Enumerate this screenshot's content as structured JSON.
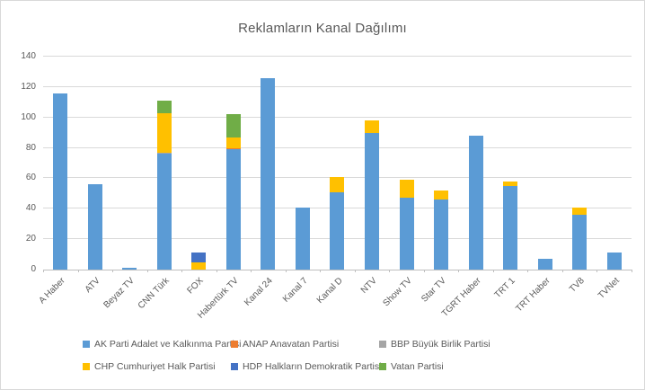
{
  "window": {
    "background": "#ffffff",
    "border_color": "#d9d9d9"
  },
  "chart_data": {
    "type": "bar",
    "stacked": true,
    "title": "Reklamların Kanal Dağılımı",
    "xlabel": "",
    "ylabel": "",
    "ylim": [
      0,
      140
    ],
    "yticks": [
      0,
      20,
      40,
      60,
      80,
      100,
      120,
      140
    ],
    "grid": true,
    "legend_position": "bottom",
    "categories": [
      "A Haber",
      "ATV",
      "Beyaz TV",
      "CNN Türk",
      "FOX",
      "Habertürk TV",
      "Kanal 24",
      "Kanal 7",
      "Kanal D",
      "NTV",
      "Show TV",
      "Star TV",
      "TGRT Haber",
      "TRT 1",
      "TRT Haber",
      "TV8",
      "TVNet"
    ],
    "series": [
      {
        "name": "AK Parti Adalet ve Kalkınma Partisi",
        "color": "#5B9BD5",
        "values": [
          116,
          56,
          1,
          76,
          0,
          79,
          126,
          41,
          51,
          90,
          47,
          46,
          88,
          55,
          7,
          36,
          11
        ]
      },
      {
        "name": "ANAP Anavatan Partisi",
        "color": "#ED7D31",
        "values": [
          0,
          0,
          0,
          0,
          0,
          1,
          0,
          0,
          0,
          0,
          0,
          0,
          0,
          0,
          0,
          0,
          0
        ]
      },
      {
        "name": "BBP Büyük Birlik Partisi",
        "color": "#A5A5A5",
        "values": [
          0,
          0,
          0,
          1,
          0,
          0,
          0,
          0,
          0,
          0,
          0,
          0,
          0,
          0,
          0,
          0,
          0
        ]
      },
      {
        "name": "CHP Cumhuriyet Halk Partisi",
        "color": "#FFC000",
        "values": [
          0,
          0,
          0,
          26,
          5,
          7,
          0,
          0,
          10,
          8,
          12,
          6,
          0,
          3,
          0,
          5,
          0
        ]
      },
      {
        "name": "HDP Halkların Demokratik Partisi",
        "color": "#4472C4",
        "values": [
          0,
          0,
          0,
          0,
          6,
          0,
          0,
          0,
          0,
          0,
          0,
          0,
          0,
          0,
          0,
          0,
          0
        ]
      },
      {
        "name": "Vatan Partisi",
        "color": "#70AD47",
        "values": [
          0,
          0,
          0,
          8,
          0,
          15,
          0,
          0,
          0,
          0,
          0,
          0,
          0,
          0,
          0,
          0,
          0
        ]
      }
    ],
    "legend_rows": [
      [
        0,
        1,
        2
      ],
      [
        3,
        4,
        5
      ]
    ]
  },
  "styles": {
    "grid_color": "#d9d9d9",
    "axis_color": "#bfbfbf",
    "text_color": "#595959"
  }
}
